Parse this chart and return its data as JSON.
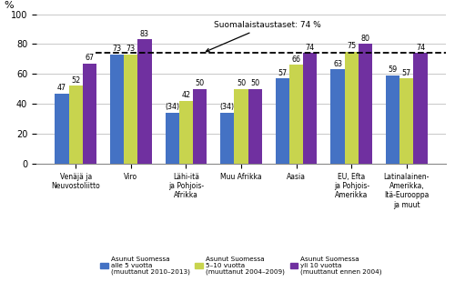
{
  "categories": [
    "Venäjä ja\nNeuvostoliitto",
    "Viro",
    "Lähi-itä\nja Pohjois-\nAfrikka",
    "Muu Afrikka",
    "Aasia",
    "EU, Efta\nja Pohjois-\nAmerikka",
    "Latinalainen-\nAmerikka,\nItä-Eurooppa\nja muut"
  ],
  "series": [
    {
      "name": "Asunut Suomessa\nalle 5 vuotta\n(muuttanut 2010–2013)",
      "color": "#4472c4",
      "values": [
        47,
        73,
        34,
        34,
        57,
        63,
        59
      ]
    },
    {
      "name": "Asunut Suomessa\n5–10 vuotta\n(muuttanut 2004–2009)",
      "color": "#c8d44e",
      "values": [
        52,
        73,
        42,
        50,
        66,
        75,
        57
      ]
    },
    {
      "name": "Asunut Suomessa\nyli 10 vuotta\n(muuttanut ennen 2004)",
      "color": "#7030a0",
      "values": [
        67,
        83,
        50,
        50,
        74,
        80,
        74
      ]
    }
  ],
  "bar_labels": [
    [
      "47",
      "73",
      "(34)",
      "(34)",
      "57",
      "63",
      "59"
    ],
    [
      "52",
      "73",
      "42",
      "50",
      "66",
      "75",
      "57"
    ],
    [
      "67",
      "83",
      "50",
      "50",
      "74",
      "80",
      "74"
    ]
  ],
  "dashed_line_y": 74,
  "annotation_text": "Suomalaistaustaset: 74 %",
  "ylim": [
    0,
    100
  ],
  "yticks": [
    0,
    20,
    40,
    60,
    80,
    100
  ],
  "ylabel": "%",
  "background_color": "#ffffff",
  "grid_color": "#c8c8c8"
}
